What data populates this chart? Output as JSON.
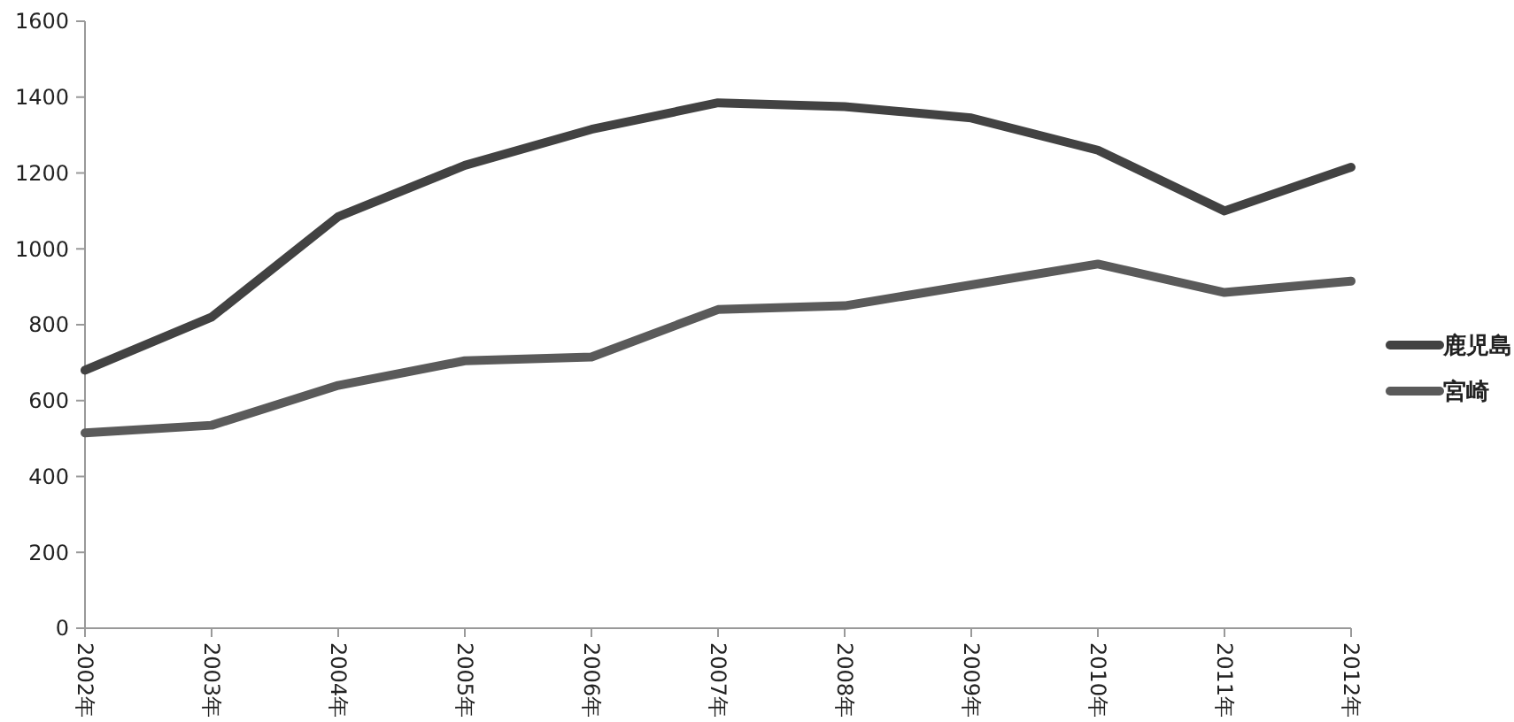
{
  "chart_data": {
    "type": "line",
    "categories": [
      "2002年",
      "2003年",
      "2004年",
      "2005年",
      "2006年",
      "2007年",
      "2008年",
      "2009年",
      "2010年",
      "2011年",
      "2012年"
    ],
    "series": [
      {
        "name": "鹿児島",
        "color": "#424242",
        "values": [
          680,
          820,
          1085,
          1220,
          1315,
          1385,
          1375,
          1345,
          1260,
          1100,
          1215
        ]
      },
      {
        "name": "宮崎",
        "color": "#5a5a5a",
        "values": [
          515,
          535,
          640,
          705,
          715,
          840,
          850,
          905,
          960,
          885,
          915
        ]
      }
    ],
    "ylim": [
      0,
      1600
    ],
    "yticks": [
      0,
      200,
      400,
      600,
      800,
      1000,
      1200,
      1400,
      1600
    ],
    "grid": false,
    "legend": "right",
    "marker": "none",
    "line_style": "solid"
  }
}
